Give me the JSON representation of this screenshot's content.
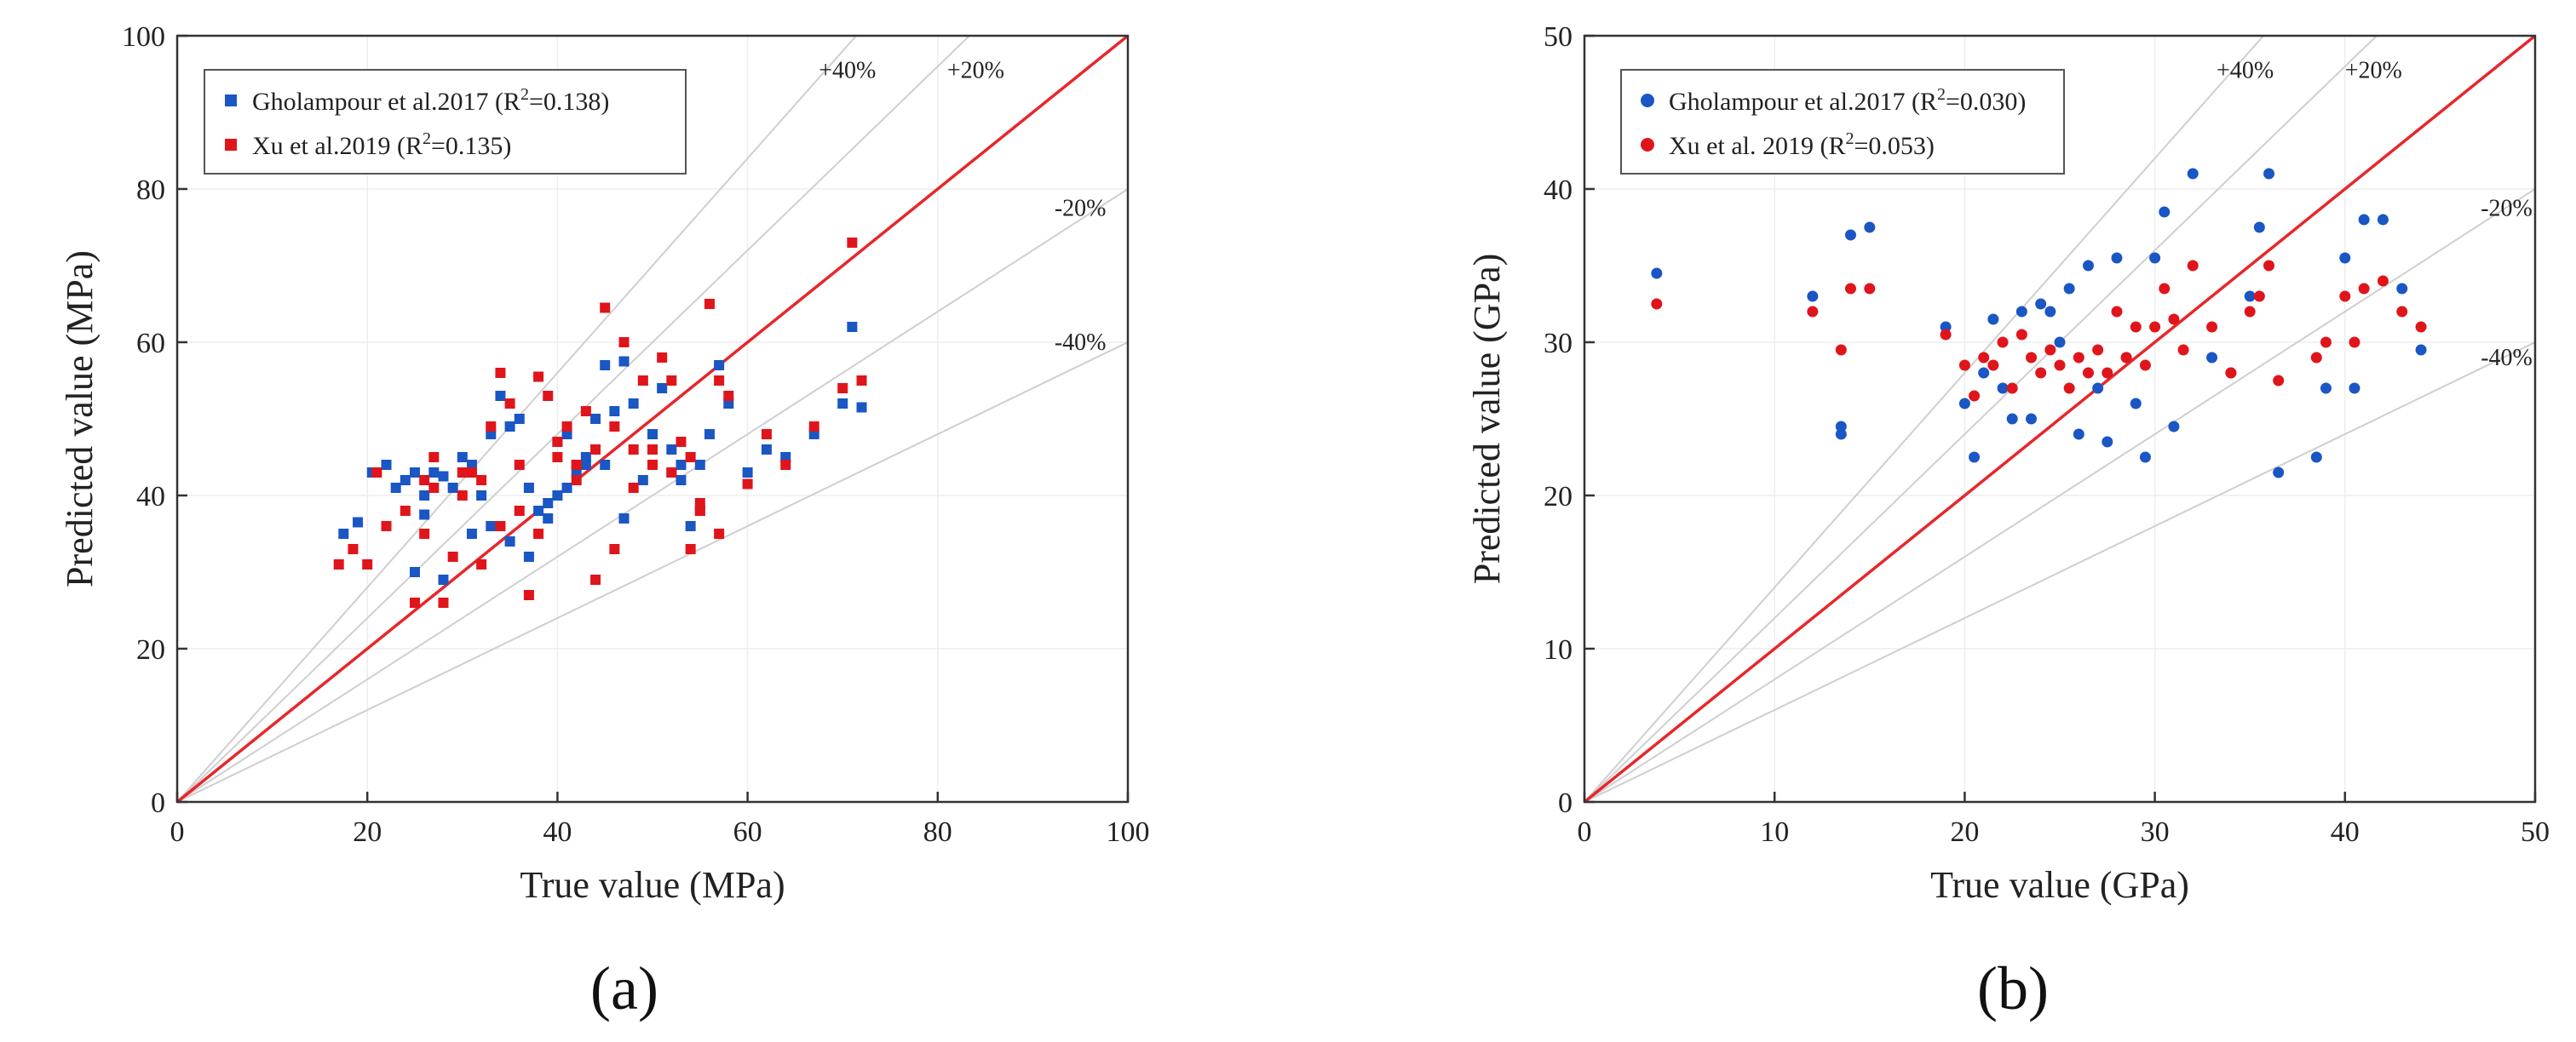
{
  "figure": {
    "panel_a_label": "(a)",
    "panel_b_label": "(b)"
  },
  "chart_data": [
    {
      "type": "scatter",
      "panel": "(a)",
      "xlabel": "True value (MPa)",
      "ylabel": "Predicted value (MPa)",
      "xlim": [
        0,
        100
      ],
      "ylim": [
        0,
        100
      ],
      "xticks": [
        0,
        20,
        40,
        60,
        80,
        100
      ],
      "yticks": [
        0,
        20,
        40,
        60,
        80,
        100
      ],
      "grid": true,
      "legend_position": "top-left",
      "marker": "square",
      "reference_lines": [
        {
          "label": "+40%",
          "slope": 1.4
        },
        {
          "label": "+20%",
          "slope": 1.2
        },
        {
          "label": "-20%",
          "slope": 0.8
        },
        {
          "label": "-40%",
          "slope": 0.6
        }
      ],
      "identity_line_color": "#e8262b",
      "series": [
        {
          "name": "Gholampour et al.2017",
          "r2_label": "R",
          "r2_value": "=0.138)",
          "color": "#1a56c4",
          "points": [
            [
              17.5,
              35
            ],
            [
              19,
              36.5
            ],
            [
              20.5,
              43
            ],
            [
              22,
              44
            ],
            [
              23,
              41
            ],
            [
              24,
              42
            ],
            [
              25,
              43
            ],
            [
              26,
              40
            ],
            [
              27,
              43
            ],
            [
              28,
              42.5
            ],
            [
              29,
              41
            ],
            [
              30,
              45
            ],
            [
              31,
              44
            ],
            [
              32,
              40
            ],
            [
              33,
              48
            ],
            [
              34,
              53
            ],
            [
              35,
              49
            ],
            [
              36,
              50
            ],
            [
              37,
              41
            ],
            [
              38,
              38
            ],
            [
              39,
              39
            ],
            [
              40,
              47
            ],
            [
              41,
              48
            ],
            [
              42,
              43
            ],
            [
              43,
              44
            ],
            [
              44,
              50
            ],
            [
              45,
              57
            ],
            [
              46,
              51
            ],
            [
              47,
              57.5
            ],
            [
              48,
              52
            ],
            [
              50,
              48
            ],
            [
              51,
              54
            ],
            [
              52,
              46
            ],
            [
              53,
              44
            ],
            [
              54,
              36
            ],
            [
              55,
              38
            ],
            [
              56,
              48
            ],
            [
              57,
              57
            ],
            [
              58,
              52
            ],
            [
              60,
              43
            ],
            [
              62,
              46
            ],
            [
              64,
              45
            ],
            [
              67,
              48
            ],
            [
              70,
              52
            ],
            [
              71,
              62
            ],
            [
              72,
              51.5
            ],
            [
              25,
              30
            ],
            [
              26,
              37.5
            ],
            [
              28,
              29
            ],
            [
              31,
              35
            ],
            [
              33,
              36
            ],
            [
              35,
              34
            ],
            [
              37,
              32
            ],
            [
              39,
              37
            ],
            [
              40,
              40
            ],
            [
              41,
              41
            ],
            [
              42,
              44
            ],
            [
              43,
              45
            ],
            [
              45,
              44
            ],
            [
              47,
              37
            ],
            [
              49,
              42
            ],
            [
              52,
              43
            ],
            [
              53,
              42
            ],
            [
              55,
              44
            ]
          ]
        },
        {
          "name": "Xu et al.2019",
          "r2_label": "R",
          "r2_value": "=0.135)",
          "color": "#e0151b",
          "points": [
            [
              17,
              31
            ],
            [
              18.5,
              33
            ],
            [
              20,
              31
            ],
            [
              21,
              43
            ],
            [
              22,
              36
            ],
            [
              24,
              38
            ],
            [
              25,
              26
            ],
            [
              26,
              42
            ],
            [
              27,
              45
            ],
            [
              28,
              26
            ],
            [
              29,
              32
            ],
            [
              30,
              40
            ],
            [
              31,
              43
            ],
            [
              32,
              42
            ],
            [
              33,
              49
            ],
            [
              34,
              56
            ],
            [
              35,
              52
            ],
            [
              36,
              38
            ],
            [
              37,
              27
            ],
            [
              38,
              55.5
            ],
            [
              39,
              53
            ],
            [
              40,
              47
            ],
            [
              41,
              49
            ],
            [
              42,
              44
            ],
            [
              43,
              51
            ],
            [
              44,
              46
            ],
            [
              45,
              64.5
            ],
            [
              46,
              49
            ],
            [
              47,
              60
            ],
            [
              48,
              41
            ],
            [
              49,
              55
            ],
            [
              50,
              44
            ],
            [
              51,
              58
            ],
            [
              52,
              55
            ],
            [
              53,
              47
            ],
            [
              54,
              33
            ],
            [
              55,
              38
            ],
            [
              56,
              65
            ],
            [
              57,
              55
            ],
            [
              58,
              53
            ],
            [
              60,
              41.5
            ],
            [
              62,
              48
            ],
            [
              64,
              44
            ],
            [
              67,
              49
            ],
            [
              70,
              54
            ],
            [
              71,
              73
            ],
            [
              72,
              55
            ],
            [
              26,
              35
            ],
            [
              27,
              41
            ],
            [
              30,
              43
            ],
            [
              32,
              31
            ],
            [
              34,
              36
            ],
            [
              36,
              44
            ],
            [
              38,
              35
            ],
            [
              40,
              45
            ],
            [
              42,
              42
            ],
            [
              44,
              29
            ],
            [
              46,
              33
            ],
            [
              48,
              46
            ],
            [
              50,
              46
            ],
            [
              52,
              43
            ],
            [
              54,
              45
            ],
            [
              55,
              39
            ],
            [
              57,
              35
            ]
          ]
        }
      ]
    },
    {
      "type": "scatter",
      "panel": "(b)",
      "xlabel": "True value (GPa)",
      "ylabel": "Predicted value (GPa)",
      "xlim": [
        0,
        50
      ],
      "ylim": [
        0,
        50
      ],
      "xticks": [
        0,
        10,
        20,
        30,
        40,
        50
      ],
      "yticks": [
        0,
        10,
        20,
        30,
        40,
        50
      ],
      "grid": true,
      "legend_position": "top-left",
      "marker": "circle",
      "reference_lines": [
        {
          "label": "+40%",
          "slope": 1.4
        },
        {
          "label": "+20%",
          "slope": 1.2
        },
        {
          "label": "-20%",
          "slope": 0.8
        },
        {
          "label": "-40%",
          "slope": 0.6
        }
      ],
      "identity_line_color": "#e8262b",
      "series": [
        {
          "name": "Gholampour et al.2017",
          "r2_label": "R",
          "r2_value": "=0.030",
          "r2_tail": ")",
          "color": "#1a56c4",
          "points": [
            [
              3.8,
              34.5
            ],
            [
              12,
              33
            ],
            [
              13.5,
              24.5
            ],
            [
              13.5,
              24
            ],
            [
              14,
              37
            ],
            [
              15,
              37.5
            ],
            [
              19,
              31
            ],
            [
              20,
              26
            ],
            [
              20.5,
              22.5
            ],
            [
              21,
              28
            ],
            [
              21.5,
              31.5
            ],
            [
              22,
              27
            ],
            [
              22.5,
              25
            ],
            [
              23,
              32
            ],
            [
              23.5,
              25
            ],
            [
              24,
              32.5
            ],
            [
              24.5,
              32
            ],
            [
              25,
              30
            ],
            [
              25.5,
              33.5
            ],
            [
              26,
              24
            ],
            [
              26.5,
              35
            ],
            [
              27,
              27
            ],
            [
              27.5,
              23.5
            ],
            [
              28,
              35.5
            ],
            [
              28.5,
              29
            ],
            [
              29,
              26
            ],
            [
              29.5,
              22.5
            ],
            [
              30,
              35.5
            ],
            [
              30.5,
              38.5
            ],
            [
              31,
              24.5
            ],
            [
              32,
              41
            ],
            [
              33,
              29
            ],
            [
              34,
              28
            ],
            [
              35,
              33
            ],
            [
              35.5,
              37.5
            ],
            [
              36,
              41
            ],
            [
              36.5,
              21.5
            ],
            [
              38.5,
              22.5
            ],
            [
              39,
              27
            ],
            [
              40,
              35.5
            ],
            [
              40.5,
              27
            ],
            [
              41,
              38
            ],
            [
              42,
              38
            ],
            [
              43,
              33.5
            ],
            [
              44,
              29.5
            ]
          ]
        },
        {
          "name": "Xu et al. 2019",
          "r2_label": "R",
          "r2_value": "=0.053)",
          "r2_tail": "",
          "color": "#e0151b",
          "points": [
            [
              3.8,
              32.5
            ],
            [
              12,
              32
            ],
            [
              13.5,
              29.5
            ],
            [
              14,
              33.5
            ],
            [
              15,
              33.5
            ],
            [
              19,
              30.5
            ],
            [
              20,
              28.5
            ],
            [
              20.5,
              26.5
            ],
            [
              21,
              29
            ],
            [
              21.5,
              28.5
            ],
            [
              22,
              30
            ],
            [
              22.5,
              27
            ],
            [
              23,
              30.5
            ],
            [
              23.5,
              29
            ],
            [
              24,
              28
            ],
            [
              24.5,
              29.5
            ],
            [
              25,
              28.5
            ],
            [
              25.5,
              27
            ],
            [
              26,
              29
            ],
            [
              26.5,
              28
            ],
            [
              27,
              29.5
            ],
            [
              27.5,
              28
            ],
            [
              28,
              32
            ],
            [
              28.5,
              29
            ],
            [
              29,
              31
            ],
            [
              29.5,
              28.5
            ],
            [
              30,
              31
            ],
            [
              30.5,
              33.5
            ],
            [
              31,
              31.5
            ],
            [
              31.5,
              29.5
            ],
            [
              32,
              35
            ],
            [
              33,
              31
            ],
            [
              34,
              28
            ],
            [
              35,
              32
            ],
            [
              35.5,
              33
            ],
            [
              36,
              35
            ],
            [
              36.5,
              27.5
            ],
            [
              38.5,
              29
            ],
            [
              39,
              30
            ],
            [
              40,
              33
            ],
            [
              40.5,
              30
            ],
            [
              41,
              33.5
            ],
            [
              42,
              34
            ],
            [
              43,
              32
            ],
            [
              44,
              31
            ]
          ]
        }
      ]
    }
  ]
}
